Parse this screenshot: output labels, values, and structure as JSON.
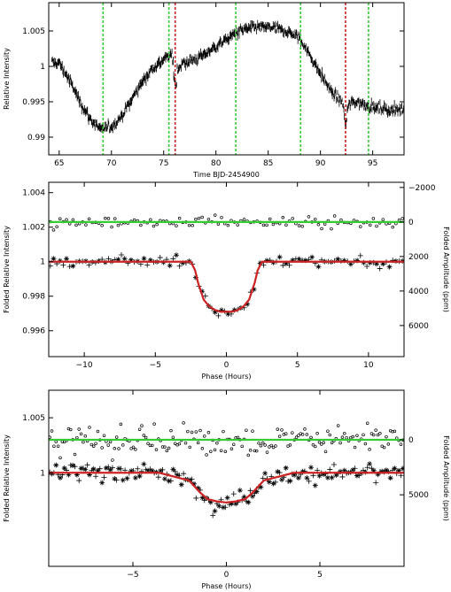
{
  "chart_data": [
    {
      "type": "scatter",
      "panel": "top",
      "xlabel": "Time BJD-2454900",
      "ylabel": "Relative Intensity",
      "xlim": [
        64,
        98
      ],
      "ylim": [
        0.9875,
        1.009
      ],
      "xticks": [
        65,
        70,
        75,
        80,
        85,
        90,
        95
      ],
      "yticks": [
        0.99,
        0.995,
        1,
        1.005
      ],
      "yticks_labels": [
        "0.99",
        "0.995",
        "1",
        "1.005"
      ],
      "xticks_labels": [
        "65",
        "70",
        "75",
        "80",
        "85",
        "90",
        "95"
      ],
      "series": [
        {
          "kind": "light-curve",
          "color": "#000000",
          "x": [
            65,
            66,
            67,
            68,
            69,
            70,
            71,
            72,
            73,
            74,
            75,
            75.8,
            76.2,
            77,
            78,
            79,
            80,
            81,
            82,
            83,
            84,
            85,
            86,
            87,
            88,
            89,
            90,
            91,
            92,
            92.4,
            93,
            94,
            95,
            96,
            97,
            98
          ],
          "y": [
            1.0005,
            0.998,
            0.995,
            0.9925,
            0.991,
            0.9915,
            0.993,
            0.9955,
            0.998,
            0.9998,
            1.001,
            1.0015,
            0.9995,
            1.0005,
            1.001,
            1.0018,
            1.0028,
            1.0038,
            1.0048,
            1.0053,
            1.0055,
            1.0055,
            1.0052,
            1.0048,
            1.004,
            1.0015,
            0.999,
            0.9965,
            0.995,
            0.9935,
            0.995,
            0.9948,
            0.9942,
            0.994,
            0.9938,
            0.994
          ]
        }
      ],
      "vlines": [
        {
          "x": 69.2,
          "style": "dashed",
          "color": "#33cc33"
        },
        {
          "x": 75.5,
          "style": "dashed",
          "color": "#33cc33"
        },
        {
          "x": 76.1,
          "style": "dashed",
          "color": "#cc2222"
        },
        {
          "x": 81.9,
          "style": "dashed",
          "color": "#33cc33"
        },
        {
          "x": 88.1,
          "style": "dashed",
          "color": "#33cc33"
        },
        {
          "x": 92.4,
          "style": "dashed",
          "color": "#cc2222"
        },
        {
          "x": 94.6,
          "style": "dashed",
          "color": "#33cc33"
        }
      ]
    },
    {
      "type": "scatter",
      "panel": "middle",
      "xlabel": "Phase (Hours)",
      "ylabel": "Folded Relative Intensity",
      "ylabel_right": "Folded Amplitude (ppm)",
      "xlim": [
        -12.5,
        12.5
      ],
      "ylim": [
        0.9945,
        1.0046
      ],
      "xticks": [
        -10,
        -5,
        0,
        5,
        10
      ],
      "xticks_labels": [
        "−10",
        "−5",
        "0",
        "5",
        "10"
      ],
      "yticks": [
        0.996,
        0.998,
        1,
        1.002,
        1.004
      ],
      "yticks_labels": [
        "0.996",
        "0.998",
        "1",
        "1.002",
        "1.004"
      ],
      "right_axis": {
        "ticks": [
          -2000,
          0,
          2000,
          4000,
          6000
        ],
        "labels": [
          "−2000",
          "0",
          "2000",
          "4000",
          "6000"
        ],
        "offset": 1.0023,
        "ppm_per_unit": 1000000
      },
      "series": [
        {
          "kind": "model",
          "color": "#cc2222",
          "x": [
            -12.5,
            -2.5,
            -2.2,
            -2,
            -1.6,
            -1.2,
            -0.8,
            -0.4,
            0,
            0.4,
            0.8,
            1.2,
            1.6,
            2,
            2.2,
            2.5,
            12.5
          ],
          "y": [
            1.0,
            1.0,
            0.9995,
            0.9988,
            0.9978,
            0.9974,
            0.9972,
            0.9971,
            0.9971,
            0.9971,
            0.9972,
            0.9974,
            0.9978,
            0.9988,
            0.9995,
            1.0,
            1.0
          ]
        },
        {
          "kind": "model",
          "color": "#33cc33",
          "x": [
            -12.5,
            12.5
          ],
          "y": [
            1.0023,
            1.0023
          ]
        }
      ]
    },
    {
      "type": "scatter",
      "panel": "bottom",
      "xlabel": "Phase (Hours)",
      "ylabel": "Folded Relative Intensity",
      "ylabel_right": "Folded Amplitude (ppm)",
      "xlim": [
        -9.5,
        9.5
      ],
      "ylim": [
        0.9915,
        1.0075
      ],
      "xticks": [
        -5,
        0,
        5
      ],
      "xticks_labels": [
        "−5",
        "0",
        "5"
      ],
      "yticks": [
        1,
        1.005
      ],
      "yticks_labels": [
        "1",
        "1.005"
      ],
      "right_axis": {
        "ticks": [
          0,
          5000
        ],
        "labels": [
          "0",
          "5000"
        ],
        "offset": 1.003,
        "ppm_per_unit": 1000000
      },
      "series": [
        {
          "kind": "model",
          "color": "#cc2222",
          "x": [
            -9.5,
            -3.6,
            -2,
            -1.4,
            -1,
            -0.5,
            0,
            0.5,
            1,
            1.4,
            2,
            3.6,
            9.5
          ],
          "y": [
            1.0,
            1.0,
            0.9993,
            0.9982,
            0.9976,
            0.9974,
            0.9973,
            0.9974,
            0.9976,
            0.9982,
            0.9993,
            1.0,
            1.0
          ]
        },
        {
          "kind": "model",
          "color": "#33cc33",
          "x": [
            -9.5,
            9.5
          ],
          "y": [
            1.003,
            1.003
          ]
        }
      ]
    }
  ]
}
